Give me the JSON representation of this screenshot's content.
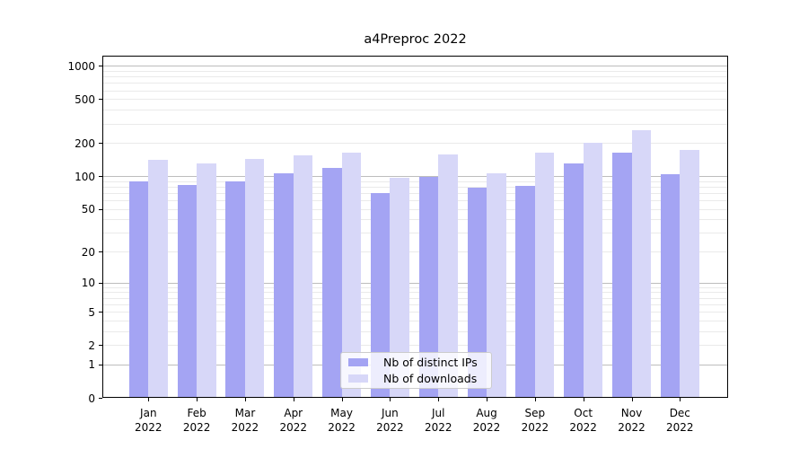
{
  "chart_data": {
    "type": "bar",
    "title": "a4Preproc 2022",
    "categories": [
      "Jan 2022",
      "Feb 2022",
      "Mar 2022",
      "Apr 2022",
      "May 2022",
      "Jun 2022",
      "Jul 2022",
      "Aug 2022",
      "Sep 2022",
      "Oct 2022",
      "Nov 2022",
      "Dec 2022"
    ],
    "series": [
      {
        "name": "Nb of distinct IPs",
        "color": "#a4a4f3",
        "values": [
          90,
          83,
          90,
          105,
          119,
          70,
          99,
          78,
          81,
          129,
          162,
          104
        ]
      },
      {
        "name": "Nb of downloads",
        "color": "#d7d7f8",
        "values": [
          141,
          131,
          142,
          153,
          162,
          96,
          158,
          106,
          164,
          200,
          263,
          174
        ]
      }
    ],
    "xlabel": "",
    "ylabel": "",
    "y_scale": "log10(value+1)",
    "ylim": [
      0,
      1240
    ],
    "y_tick_labels": [
      "1000",
      "500",
      "200",
      "100",
      "50",
      "20",
      "10",
      "5",
      "2",
      "1",
      "0"
    ],
    "y_tick_values": [
      1000,
      500,
      200,
      100,
      50,
      20,
      10,
      5,
      2,
      1,
      0
    ],
    "grid": "on",
    "legend_position": "lower center"
  },
  "colors": {
    "major_gridline": "#bdbdbd",
    "minor_gridline": "#eaeaea",
    "axis": "#000000",
    "background": "#ffffff"
  }
}
